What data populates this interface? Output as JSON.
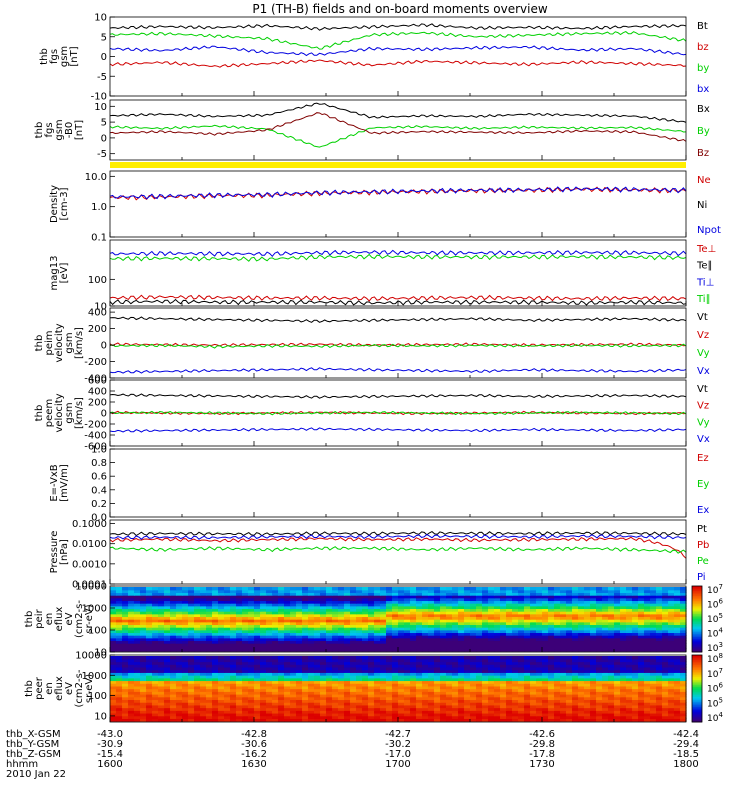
{
  "title": "P1 (TH-B) fields and on-board moments overview",
  "footer": {
    "rows": [
      {
        "label": "thb_X-GSM",
        "values": [
          "-43.0",
          "-42.8",
          "-42.7",
          "-42.6",
          "-42.4"
        ]
      },
      {
        "label": "thb_Y-GSM",
        "values": [
          "-30.9",
          "-30.6",
          "-30.2",
          "-29.8",
          "-29.4"
        ]
      },
      {
        "label": "thb_Z-GSM",
        "values": [
          "-15.4",
          "-16.2",
          "-17.0",
          "-17.8",
          "-18.5"
        ]
      },
      {
        "label": "hhmm",
        "values": [
          "1600",
          "1630",
          "1700",
          "1730",
          "1800"
        ]
      }
    ],
    "date": "2010 Jan 22"
  },
  "colors": {
    "black": "#000000",
    "red": "#d00000",
    "green": "#00d000",
    "blue": "#0000e0",
    "darkred": "#800000",
    "yellow": "#ffee00"
  },
  "chart_data": [
    {
      "type": "line",
      "ylabel": [
        "thb",
        "fgs",
        "gsm",
        "[nT]"
      ],
      "ylim": [
        -10,
        10
      ],
      "ticks": [
        "10",
        "5",
        "0",
        "-5",
        "-10"
      ],
      "tickvals": [
        10,
        5,
        0,
        -5,
        -10
      ],
      "log": false,
      "series": [
        {
          "name": "Bt",
          "color": "black",
          "values": [
            7.2,
            7.6,
            7.3,
            7.8,
            7.0,
            7.5,
            8.0,
            7.2,
            7.4,
            7.1,
            7.6,
            7.8
          ]
        },
        {
          "name": "bz",
          "color": "red",
          "values": [
            -2.0,
            -1.5,
            -2.5,
            -1.8,
            -1.0,
            -2.2,
            -1.2,
            -1.6,
            -2.0,
            -1.4,
            -1.8,
            -2.3
          ]
        },
        {
          "name": "by",
          "color": "green",
          "values": [
            5.5,
            5.8,
            5.2,
            4.5,
            2.0,
            5.5,
            6.0,
            5.0,
            5.4,
            5.8,
            6.0,
            4.0
          ]
        },
        {
          "name": "bx",
          "color": "blue",
          "values": [
            2.0,
            1.5,
            2.5,
            1.0,
            0.5,
            2.0,
            1.8,
            2.2,
            2.4,
            1.6,
            2.0,
            0.5
          ]
        }
      ]
    },
    {
      "type": "line",
      "ylabel": [
        "thb",
        "fgs",
        "gsm",
        "-B0",
        "[nT]"
      ],
      "ylim": [
        -7,
        12
      ],
      "ticks": [
        "10",
        "5",
        "0",
        "-5"
      ],
      "tickvals": [
        10,
        5,
        0,
        -5
      ],
      "log": false,
      "series": [
        {
          "name": "Bx",
          "color": "black",
          "values": [
            7.0,
            7.5,
            6.8,
            7.2,
            11.0,
            6.5,
            7.0,
            6.8,
            7.5,
            7.2,
            6.9,
            5.0
          ]
        },
        {
          "name": "By",
          "color": "green",
          "values": [
            3.5,
            3.0,
            3.8,
            2.8,
            -3.0,
            3.2,
            3.6,
            3.0,
            3.4,
            3.1,
            3.3,
            2.0
          ]
        },
        {
          "name": "Bz",
          "color": "darkred",
          "values": [
            1.5,
            2.0,
            1.2,
            2.5,
            8.0,
            1.5,
            2.0,
            1.8,
            1.6,
            2.2,
            1.9,
            -1.0
          ]
        }
      ]
    },
    {
      "type": "line",
      "ylabel": [
        "Density",
        "[cm-3]"
      ],
      "ylim": [
        0.1,
        15
      ],
      "ticks": [
        "10.0",
        "1.0",
        "0.1"
      ],
      "tickvals": [
        10,
        1,
        0.1
      ],
      "log": true,
      "series": [
        {
          "name": "Ne",
          "color": "red",
          "values": [
            2.0,
            2.1,
            2.3,
            2.4,
            2.8,
            3.0,
            3.2,
            3.4,
            3.5,
            3.8,
            3.6,
            3.4
          ]
        },
        {
          "name": "Ni",
          "color": "black",
          "values": []
        },
        {
          "name": "Npot",
          "color": "blue",
          "values": [
            2.1,
            2.2,
            2.4,
            2.5,
            2.9,
            3.1,
            3.3,
            3.5,
            3.6,
            3.9,
            3.7,
            3.5
          ]
        }
      ]
    },
    {
      "type": "line",
      "ylabel": [
        "mag13",
        "[eV]"
      ],
      "ylim": [
        10,
        3000
      ],
      "ticks": [
        "100",
        "10"
      ],
      "tickvals": [
        100,
        10
      ],
      "log": true,
      "series": [
        {
          "name": "Te⊥",
          "color": "red",
          "values": [
            20,
            22,
            21,
            20,
            20,
            19,
            20,
            21,
            20,
            19,
            20,
            19
          ]
        },
        {
          "name": "Te∥",
          "color": "black",
          "values": [
            14,
            15,
            14,
            14,
            14,
            13,
            14,
            14,
            14,
            13,
            14,
            13
          ]
        },
        {
          "name": "Ti⊥",
          "color": "blue",
          "values": [
            900,
            950,
            920,
            900,
            1000,
            1050,
            1000,
            980,
            1000,
            1020,
            1000,
            950
          ]
        },
        {
          "name": "Ti∥",
          "color": "green",
          "values": [
            600,
            620,
            600,
            580,
            700,
            720,
            700,
            690,
            700,
            710,
            690,
            650
          ]
        }
      ]
    },
    {
      "type": "line",
      "ylabel": [
        "thb",
        "peim",
        "velocity",
        "gsm",
        "[km/s]"
      ],
      "ylim": [
        -400,
        450
      ],
      "ticks": [
        "400",
        "200",
        "0",
        "-200",
        "-400"
      ],
      "tickvals": [
        400,
        200,
        0,
        -200,
        -400
      ],
      "log": false,
      "series": [
        {
          "name": "Vt",
          "color": "black",
          "values": [
            330,
            320,
            310,
            300,
            290,
            300,
            310,
            320,
            300,
            310,
            320,
            300
          ]
        },
        {
          "name": "Vz",
          "color": "red",
          "values": [
            10,
            5,
            0,
            5,
            10,
            0,
            5,
            10,
            0,
            5,
            10,
            0
          ]
        },
        {
          "name": "Vy",
          "color": "green",
          "values": [
            -10,
            -5,
            -20,
            -10,
            -15,
            -5,
            -10,
            -5,
            -10,
            -5,
            -10,
            -5
          ]
        },
        {
          "name": "Vx",
          "color": "blue",
          "values": [
            -330,
            -320,
            -310,
            -300,
            -290,
            -300,
            -310,
            -320,
            -300,
            -310,
            -320,
            -300
          ]
        }
      ]
    },
    {
      "type": "line",
      "ylabel": [
        "thb",
        "peem",
        "velocity",
        "gsm",
        "[km/s]"
      ],
      "ylim": [
        -600,
        600
      ],
      "ticks": [
        "600",
        "400",
        "200",
        "0",
        "-200",
        "-400",
        "-600"
      ],
      "tickvals": [
        600,
        400,
        200,
        0,
        -200,
        -400,
        -600
      ],
      "log": false,
      "series": [
        {
          "name": "Vt",
          "color": "black",
          "values": [
            330,
            320,
            310,
            300,
            290,
            300,
            310,
            320,
            300,
            310,
            320,
            300
          ]
        },
        {
          "name": "Vz",
          "color": "red",
          "values": [
            10,
            0,
            -10,
            0,
            10,
            0,
            -10,
            0,
            10,
            0,
            -10,
            0
          ]
        },
        {
          "name": "Vy",
          "color": "green",
          "values": [
            0,
            10,
            0,
            -10,
            0,
            10,
            0,
            -10,
            0,
            10,
            0,
            -10
          ]
        },
        {
          "name": "Vx",
          "color": "blue",
          "values": [
            -330,
            -320,
            -310,
            -300,
            -290,
            -300,
            -310,
            -320,
            -300,
            -310,
            -320,
            -300
          ]
        }
      ]
    },
    {
      "type": "line",
      "ylabel": [
        "E=-VxB",
        "[mV/m]"
      ],
      "ylim": [
        0,
        1
      ],
      "ticks": [
        "1.0",
        "0.8",
        "0.6",
        "0.4",
        "0.2",
        "0.0"
      ],
      "tickvals": [
        1,
        0.8,
        0.6,
        0.4,
        0.2,
        0
      ],
      "log": false,
      "series": [
        {
          "name": "Ez",
          "color": "red",
          "values": []
        },
        {
          "name": "Ey",
          "color": "green",
          "values": []
        },
        {
          "name": "Ex",
          "color": "blue",
          "values": []
        }
      ]
    },
    {
      "type": "line",
      "ylabel": [
        "Pressure",
        "[nPa]"
      ],
      "ylim": [
        0.0001,
        0.15
      ],
      "ticks": [
        "0.1000",
        "0.0100",
        "0.0010",
        "0.0001"
      ],
      "tickvals": [
        0.1,
        0.01,
        0.001,
        0.0001
      ],
      "log": true,
      "series": [
        {
          "name": "Pt",
          "color": "black",
          "values": [
            0.03,
            0.032,
            0.031,
            0.03,
            0.033,
            0.032,
            0.034,
            0.033,
            0.032,
            0.034,
            0.033,
            0.03
          ]
        },
        {
          "name": "Pb",
          "color": "red",
          "values": [
            0.015,
            0.017,
            0.014,
            0.016,
            0.018,
            0.016,
            0.017,
            0.015,
            0.016,
            0.017,
            0.018,
            0.002
          ]
        },
        {
          "name": "Pe",
          "color": "green",
          "values": [
            0.006,
            0.005,
            0.006,
            0.005,
            0.006,
            0.006,
            0.005,
            0.006,
            0.005,
            0.006,
            0.005,
            0.004
          ]
        },
        {
          "name": "Pi",
          "color": "blue",
          "values": [
            0.02,
            0.021,
            0.02,
            0.022,
            0.023,
            0.022,
            0.024,
            0.023,
            0.022,
            0.024,
            0.023,
            0.02
          ]
        }
      ]
    },
    {
      "type": "heatmap",
      "ylabel": [
        "thb",
        "peir",
        "en",
        "eflux",
        "eV",
        "(cm2-s-",
        "sr-eV)"
      ],
      "ylim": [
        10,
        10000
      ],
      "ticks": [
        "10000",
        "1000",
        "100",
        "10"
      ],
      "tickvals": [
        10000,
        1000,
        100,
        10
      ],
      "log": true,
      "colorbar": {
        "ticks": [
          "10^7",
          "10^6",
          "10^5",
          "10^4",
          "10^3"
        ]
      }
    },
    {
      "type": "heatmap",
      "ylabel": [
        "thb",
        "peer",
        "en",
        "eflux",
        "eV",
        "(cm2-s-",
        "sr-eV)"
      ],
      "ylim": [
        5,
        10000
      ],
      "ticks": [
        "10000",
        "1000",
        "100",
        "10"
      ],
      "tickvals": [
        10000,
        1000,
        100,
        10
      ],
      "log": true,
      "colorbar": {
        "ticks": [
          "10^8",
          "10^7",
          "10^6",
          "10^5",
          "10^4"
        ]
      }
    }
  ]
}
